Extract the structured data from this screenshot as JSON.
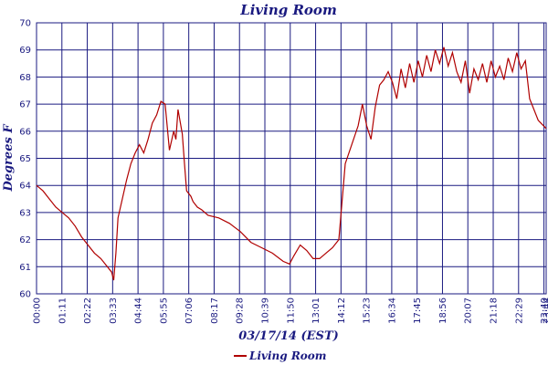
{
  "chart_data": {
    "type": "line",
    "title": "Living Room",
    "xlabel": "03/17/14 (EST)",
    "ylabel": "Degrees F",
    "ylim": [
      60,
      70
    ],
    "yticks": [
      60,
      61,
      62,
      63,
      64,
      65,
      66,
      67,
      68,
      69,
      70
    ],
    "x_unit": "time of day (hours)",
    "xlim": [
      0,
      23.77
    ],
    "xtick_labels": [
      "00:00",
      "01:11",
      "02:22",
      "03:33",
      "04:44",
      "05:55",
      "07:06",
      "08:17",
      "09:28",
      "10:39",
      "11:50",
      "13:01",
      "14:12",
      "15:23",
      "16:34",
      "17:45",
      "18:56",
      "20:07",
      "21:18",
      "22:29",
      "23:40",
      "23:44"
    ],
    "grid": true,
    "legend_position": "bottom-left",
    "colors": {
      "series": "#b00000",
      "grid": "#1a1a80",
      "text": "#1a1a80"
    },
    "series": [
      {
        "name": "Living Room",
        "x": [
          0.0,
          0.3,
          0.6,
          0.9,
          1.2,
          1.5,
          1.8,
          2.1,
          2.4,
          2.7,
          3.0,
          3.3,
          3.5,
          3.6,
          3.7,
          3.8,
          4.0,
          4.2,
          4.4,
          4.6,
          4.8,
          5.0,
          5.2,
          5.4,
          5.6,
          5.8,
          6.0,
          6.2,
          6.4,
          6.5,
          6.6,
          6.8,
          6.9,
          7.0,
          7.2,
          7.3,
          7.5,
          7.7,
          8.0,
          8.5,
          9.0,
          9.5,
          10.0,
          10.5,
          11.0,
          11.5,
          11.8,
          12.0,
          12.3,
          12.6,
          12.9,
          13.2,
          13.5,
          13.8,
          14.1,
          14.4,
          14.7,
          15.0,
          15.2,
          15.4,
          15.6,
          15.8,
          16.0,
          16.2,
          16.4,
          16.6,
          16.8,
          17.0,
          17.2,
          17.4,
          17.6,
          17.8,
          18.0,
          18.2,
          18.4,
          18.6,
          18.8,
          19.0,
          19.2,
          19.4,
          19.6,
          19.8,
          20.0,
          20.2,
          20.4,
          20.6,
          20.8,
          21.0,
          21.2,
          21.4,
          21.6,
          21.8,
          22.0,
          22.2,
          22.4,
          22.6,
          22.8,
          23.0,
          23.2,
          23.4,
          23.77
        ],
        "values": [
          64.0,
          63.8,
          63.5,
          63.2,
          63.0,
          62.8,
          62.5,
          62.1,
          61.8,
          61.5,
          61.3,
          61.0,
          60.8,
          60.5,
          61.5,
          62.8,
          63.5,
          64.2,
          64.8,
          65.2,
          65.5,
          65.2,
          65.7,
          66.3,
          66.6,
          67.1,
          67.0,
          65.3,
          66.0,
          65.7,
          66.8,
          65.9,
          64.8,
          63.8,
          63.6,
          63.4,
          63.2,
          63.1,
          62.9,
          62.8,
          62.6,
          62.3,
          61.9,
          61.7,
          61.5,
          61.2,
          61.1,
          61.4,
          61.8,
          61.6,
          61.3,
          61.3,
          61.5,
          61.7,
          62.0,
          64.8,
          65.5,
          66.2,
          67.0,
          66.2,
          65.7,
          66.9,
          67.7,
          67.9,
          68.2,
          67.8,
          67.2,
          68.3,
          67.6,
          68.5,
          67.8,
          68.6,
          68.0,
          68.8,
          68.2,
          69.0,
          68.5,
          69.1,
          68.4,
          68.9,
          68.2,
          67.8,
          68.6,
          67.4,
          68.3,
          67.9,
          68.5,
          67.8,
          68.6,
          68.0,
          68.4,
          67.9,
          68.7,
          68.2,
          68.9,
          68.3,
          68.6,
          67.2,
          66.8,
          66.4,
          66.1
        ]
      }
    ]
  }
}
